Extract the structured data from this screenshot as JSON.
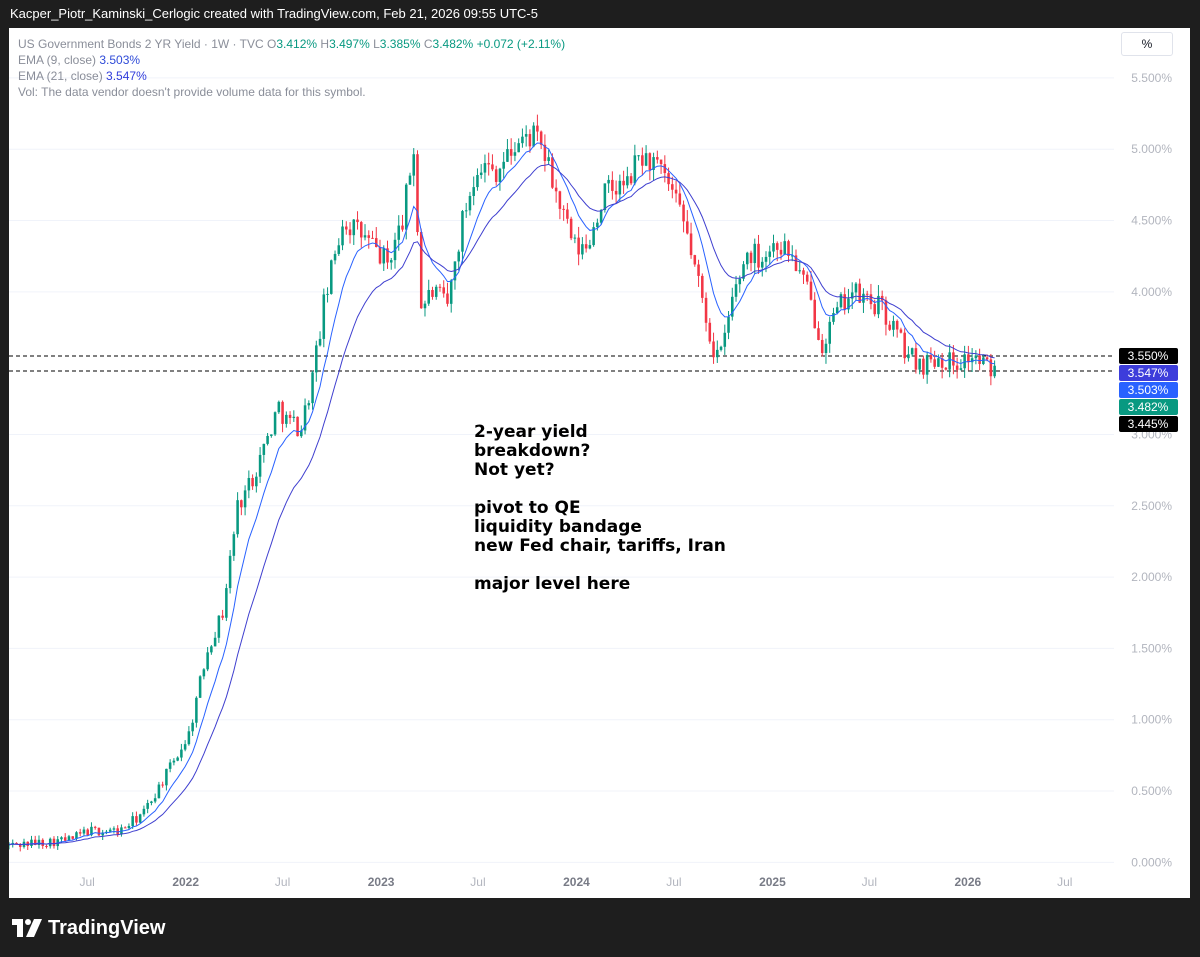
{
  "header": {
    "text": "Kacper_Piotr_Kaminski_Cerlogic created with TradingView.com, Feb 21, 2026 09:55 UTC-5"
  },
  "legend": {
    "symbol": "US Government Bonds 2 YR Yield · 1W · TVC",
    "open_label": "O",
    "open": "3.412%",
    "high_label": "H",
    "high": "3.497%",
    "low_label": "L",
    "low": "3.385%",
    "close_label": "C",
    "close": "3.482%",
    "change": "+0.072 (+2.11%)",
    "ema9_label": "EMA (9, close)",
    "ema9_value": "3.503%",
    "ema21_label": "EMA (21, close)",
    "ema21_value": "3.547%",
    "vol_note": "Vol: The data vendor doesn't provide volume data for this symbol."
  },
  "scale_button": "%",
  "annotation": {
    "line1": "2-year yield",
    "line2": "breakdown?",
    "line3": "Not yet?",
    "line4": "pivot to QE",
    "line5": "liquidity bandage",
    "line6": "new Fed chair, tariffs, Iran",
    "line7": "major level here"
  },
  "footer": {
    "brand": "TradingView"
  },
  "colors": {
    "up": "#089981",
    "down": "#f23645",
    "ema9": "#2962ff",
    "ema21": "#3f3fcf",
    "grid": "#f0f3fa",
    "axis_text": "#b2b5be"
  },
  "chart_data": {
    "type": "candlestick",
    "title": "US Government Bonds 2 YR Yield · 1W · TVC",
    "y_axis": {
      "unit": "%",
      "ticks": [
        "5.500%",
        "5.000%",
        "4.500%",
        "4.000%",
        "3.000%",
        "2.500%",
        "2.000%",
        "1.500%",
        "1.000%",
        "0.500%",
        "0.000%"
      ],
      "range": [
        -0.25,
        5.85
      ]
    },
    "x_axis": {
      "ticks": [
        "Jul",
        "2022",
        "Jul",
        "2023",
        "Jul",
        "2024",
        "Jul",
        "2025",
        "Jul",
        "2026",
        "Jul"
      ],
      "bold": [
        false,
        true,
        false,
        true,
        false,
        true,
        false,
        true,
        false,
        true,
        false
      ],
      "range": [
        "2021-02-05",
        "2026-10-01"
      ]
    },
    "horizontal_lines": [
      3.55,
      3.445
    ],
    "price_labels": [
      {
        "text": "3.550%",
        "value": 3.55,
        "bg": "#000000"
      },
      {
        "text": "3.547%",
        "value": 3.547,
        "bg": "#3d3ddb"
      },
      {
        "text": "3.503%",
        "value": 3.503,
        "bg": "#2962ff"
      },
      {
        "text": "3.482%",
        "value": 3.482,
        "bg": "#089981"
      },
      {
        "text": "3.445%",
        "value": 3.445,
        "bg": "#000000"
      }
    ],
    "path_anchors": [
      [
        "2021-02-05",
        0.12
      ],
      [
        "2021-06-01",
        0.16
      ],
      [
        "2021-07-01",
        0.22
      ],
      [
        "2021-09-01",
        0.22
      ],
      [
        "2021-10-15",
        0.35
      ],
      [
        "2021-12-01",
        0.65
      ],
      [
        "2022-01-07",
        0.9
      ],
      [
        "2022-02-11",
        1.5
      ],
      [
        "2022-03-11",
        1.75
      ],
      [
        "2022-04-08",
        2.5
      ],
      [
        "2022-05-06",
        2.7
      ],
      [
        "2022-06-10",
        3.05
      ],
      [
        "2022-06-24",
        3.2
      ],
      [
        "2022-07-08",
        3.1
      ],
      [
        "2022-08-05",
        3.05
      ],
      [
        "2022-08-26",
        3.4
      ],
      [
        "2022-09-16",
        3.9
      ],
      [
        "2022-10-21",
        4.5
      ],
      [
        "2022-11-11",
        4.45
      ],
      [
        "2022-12-09",
        4.35
      ],
      [
        "2023-01-13",
        4.2
      ],
      [
        "2023-02-10",
        4.5
      ],
      [
        "2023-03-03",
        5.0
      ],
      [
        "2023-03-17",
        3.9
      ],
      [
        "2023-04-07",
        4.0
      ],
      [
        "2023-05-05",
        3.9
      ],
      [
        "2023-06-02",
        4.5
      ],
      [
        "2023-06-30",
        4.9
      ],
      [
        "2023-08-04",
        4.85
      ],
      [
        "2023-09-15",
        5.05
      ],
      [
        "2023-10-13",
        5.1
      ],
      [
        "2023-11-03",
        4.95
      ],
      [
        "2023-12-01",
        4.6
      ],
      [
        "2023-12-29",
        4.3
      ],
      [
        "2024-01-19",
        4.3
      ],
      [
        "2024-02-23",
        4.7
      ],
      [
        "2024-04-05",
        4.75
      ],
      [
        "2024-04-26",
        4.95
      ],
      [
        "2024-05-24",
        4.9
      ],
      [
        "2024-06-21",
        4.75
      ],
      [
        "2024-07-26",
        4.4
      ],
      [
        "2024-08-16",
        4.05
      ],
      [
        "2024-09-13",
        3.6
      ],
      [
        "2024-09-27",
        3.55
      ],
      [
        "2024-10-18",
        3.95
      ],
      [
        "2024-11-15",
        4.28
      ],
      [
        "2024-12-13",
        4.25
      ],
      [
        "2025-01-10",
        4.35
      ],
      [
        "2025-02-07",
        4.25
      ],
      [
        "2025-03-07",
        4.0
      ],
      [
        "2025-04-04",
        3.65
      ],
      [
        "2025-04-25",
        3.8
      ],
      [
        "2025-05-23",
        4.0
      ],
      [
        "2025-06-20",
        3.95
      ],
      [
        "2025-07-18",
        3.9
      ],
      [
        "2025-08-15",
        3.75
      ],
      [
        "2025-09-12",
        3.55
      ],
      [
        "2025-10-10",
        3.5
      ],
      [
        "2025-11-07",
        3.55
      ],
      [
        "2025-12-05",
        3.5
      ],
      [
        "2026-01-09",
        3.55
      ],
      [
        "2026-02-13",
        3.45
      ],
      [
        "2026-02-20",
        3.482
      ]
    ]
  }
}
